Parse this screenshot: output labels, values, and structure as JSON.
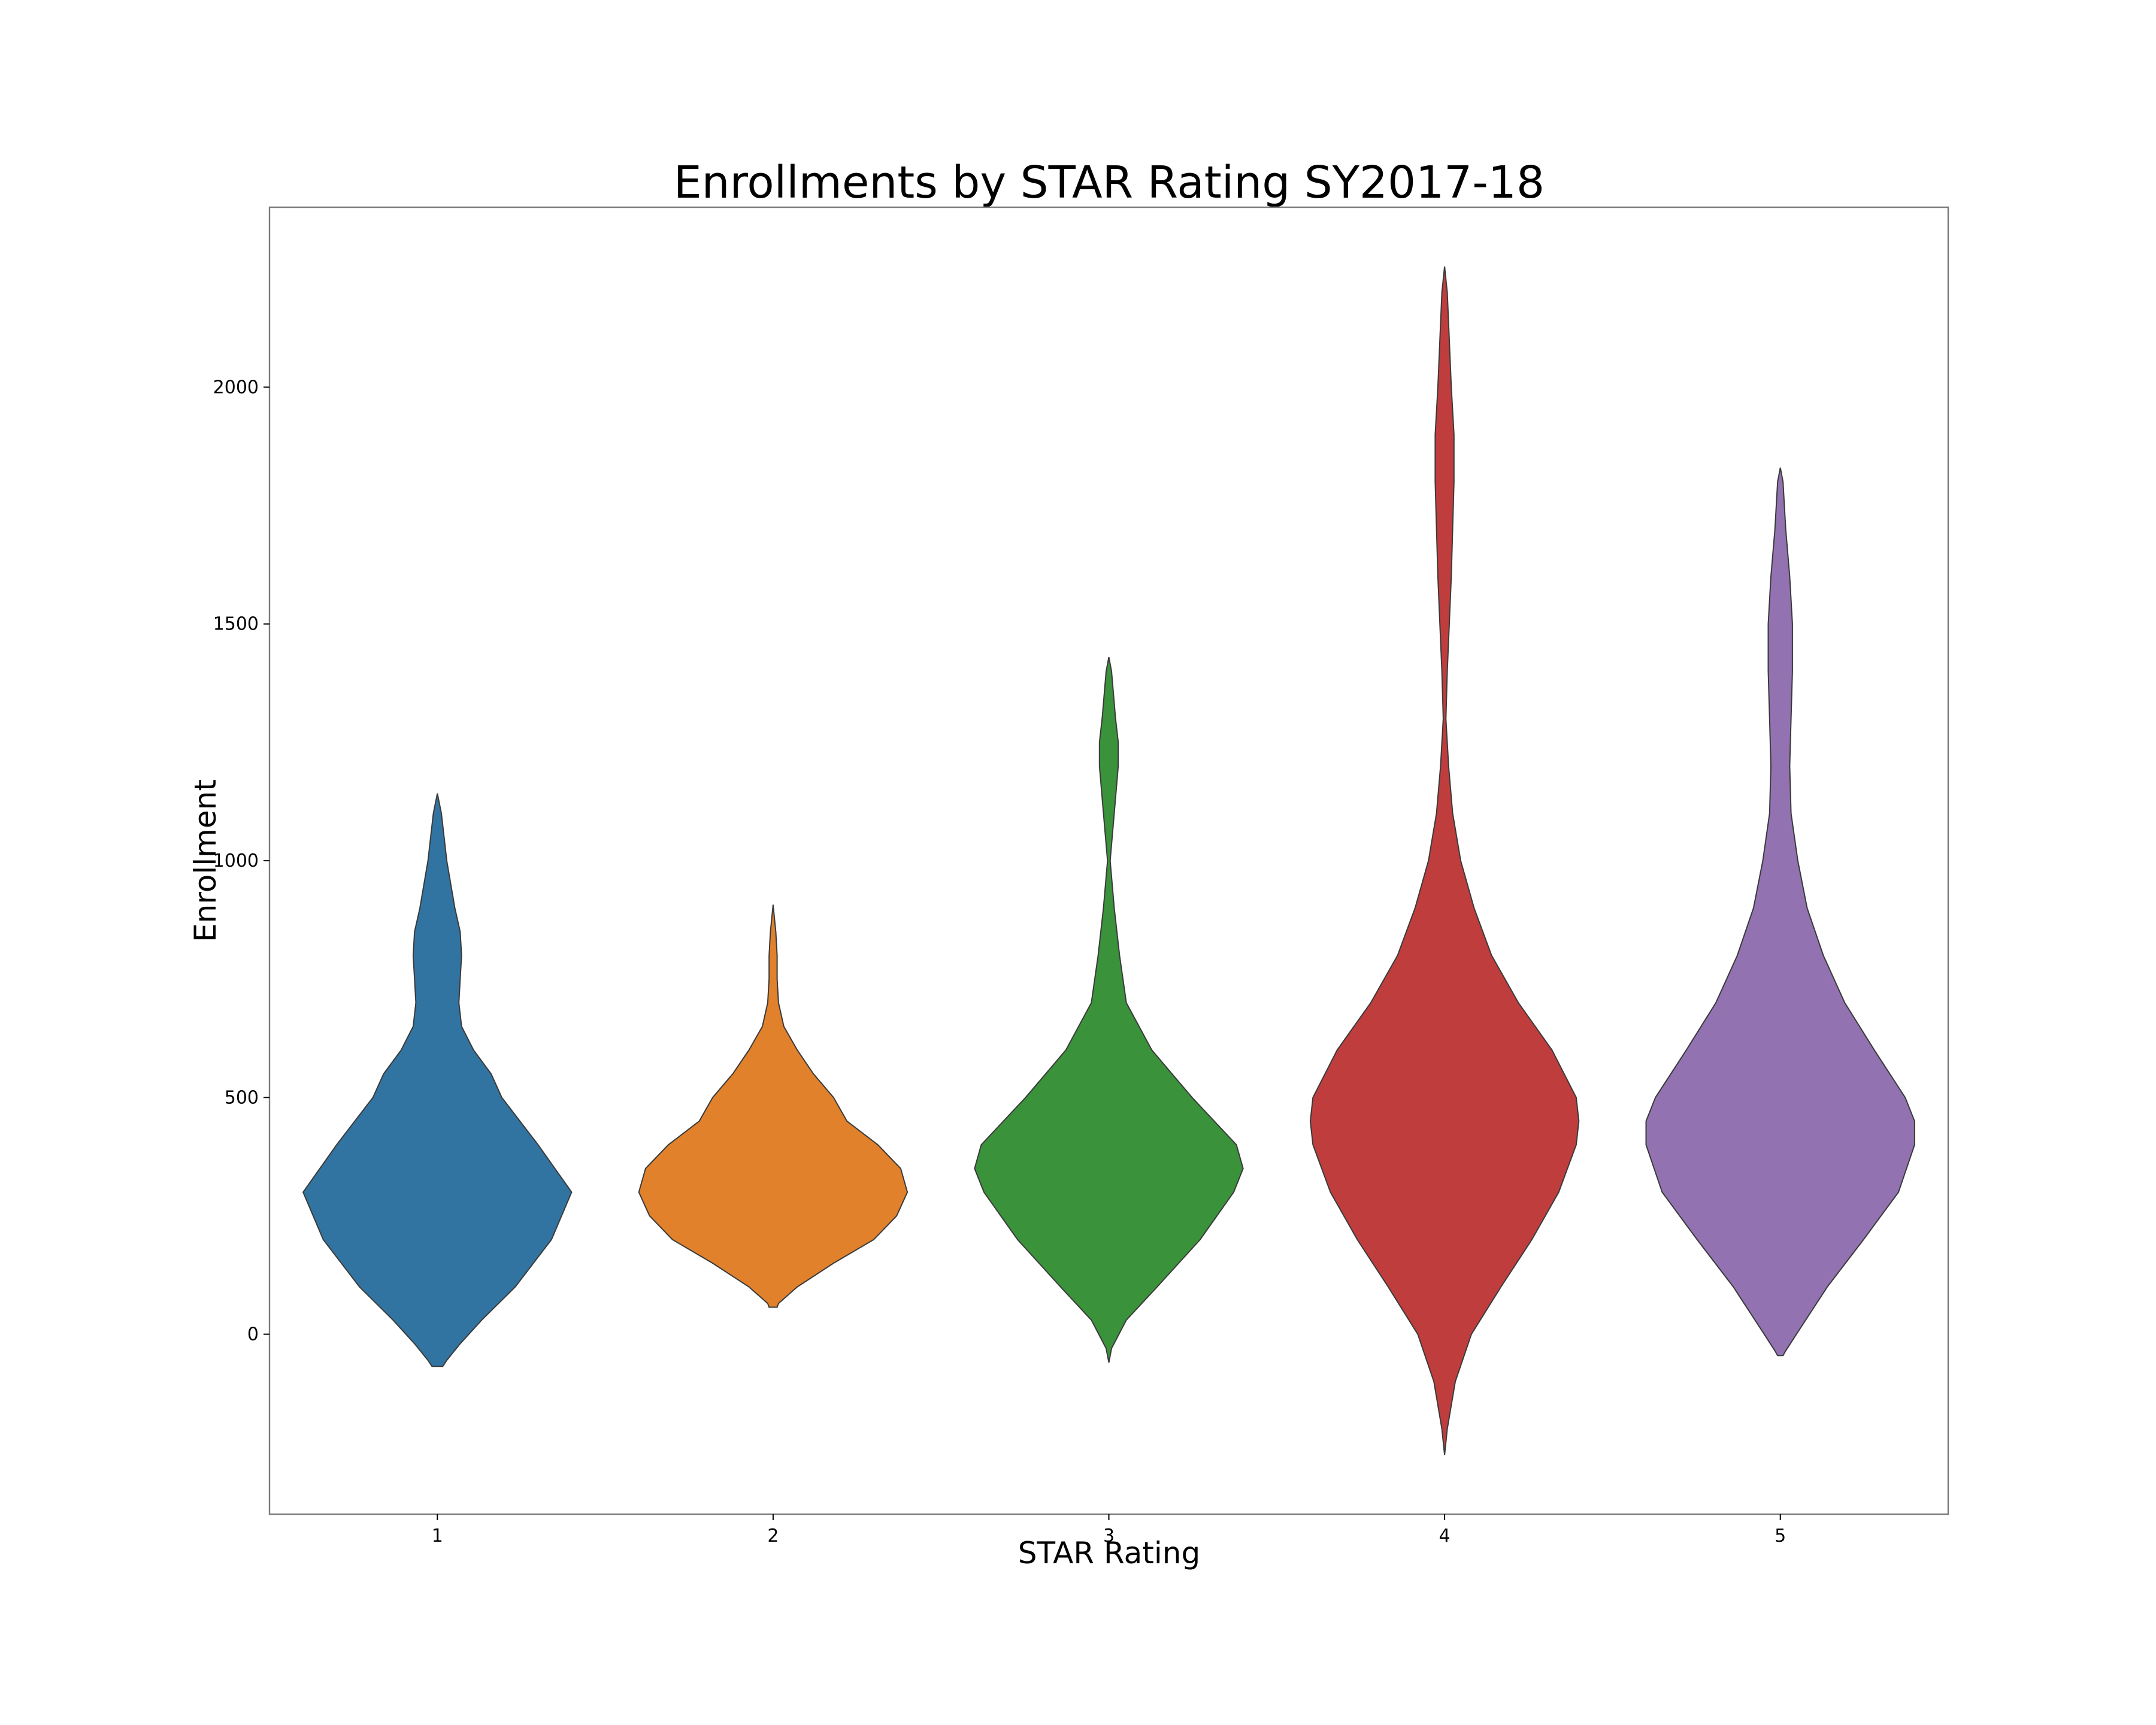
{
  "chart_data": {
    "type": "violin",
    "title": "Enrollments by STAR Rating SY2017-18",
    "xlabel": "STAR Rating",
    "ylabel": "Enrollment",
    "categories": [
      "1",
      "2",
      "3",
      "4",
      "5"
    ],
    "ylim": [
      -380,
      2380
    ],
    "yticks": [
      0,
      500,
      1000,
      1500,
      2000
    ],
    "grid": false,
    "legend": "none",
    "series": [
      {
        "category": "1",
        "color": "#3274a1",
        "density": [
          [
            -68,
            0.04
          ],
          [
            -55,
            0.07
          ],
          [
            -20,
            0.17
          ],
          [
            30,
            0.33
          ],
          [
            100,
            0.58
          ],
          [
            200,
            0.85
          ],
          [
            300,
            1.0
          ],
          [
            400,
            0.75
          ],
          [
            500,
            0.48
          ],
          [
            550,
            0.4
          ],
          [
            600,
            0.27
          ],
          [
            650,
            0.18
          ],
          [
            700,
            0.16
          ],
          [
            750,
            0.17
          ],
          [
            800,
            0.18
          ],
          [
            850,
            0.17
          ],
          [
            900,
            0.13
          ],
          [
            1000,
            0.07
          ],
          [
            1100,
            0.03
          ],
          [
            1142,
            0.0
          ]
        ]
      },
      {
        "category": "2",
        "color": "#e1812c",
        "density": [
          [
            57,
            0.03
          ],
          [
            65,
            0.04
          ],
          [
            100,
            0.18
          ],
          [
            150,
            0.45
          ],
          [
            200,
            0.75
          ],
          [
            250,
            0.92
          ],
          [
            300,
            1.0
          ],
          [
            350,
            0.95
          ],
          [
            400,
            0.78
          ],
          [
            450,
            0.55
          ],
          [
            500,
            0.45
          ],
          [
            550,
            0.3
          ],
          [
            600,
            0.18
          ],
          [
            650,
            0.08
          ],
          [
            700,
            0.04
          ],
          [
            750,
            0.03
          ],
          [
            800,
            0.03
          ],
          [
            850,
            0.02
          ],
          [
            907,
            0.0
          ]
        ]
      },
      {
        "category": "3",
        "color": "#3a923a",
        "density": [
          [
            -60,
            0.0
          ],
          [
            -30,
            0.02
          ],
          [
            30,
            0.13
          ],
          [
            100,
            0.36
          ],
          [
            200,
            0.68
          ],
          [
            300,
            0.93
          ],
          [
            350,
            1.0
          ],
          [
            400,
            0.95
          ],
          [
            500,
            0.62
          ],
          [
            600,
            0.32
          ],
          [
            700,
            0.13
          ],
          [
            800,
            0.08
          ],
          [
            900,
            0.04
          ],
          [
            1000,
            0.01
          ],
          [
            1100,
            0.04
          ],
          [
            1200,
            0.07
          ],
          [
            1250,
            0.07
          ],
          [
            1300,
            0.05
          ],
          [
            1400,
            0.02
          ],
          [
            1430,
            0.0
          ]
        ]
      },
      {
        "category": "4",
        "color": "#c03d3e",
        "density": [
          [
            -255,
            0.0
          ],
          [
            -200,
            0.02
          ],
          [
            -100,
            0.08
          ],
          [
            0,
            0.2
          ],
          [
            100,
            0.42
          ],
          [
            200,
            0.65
          ],
          [
            300,
            0.85
          ],
          [
            400,
            0.98
          ],
          [
            450,
            1.0
          ],
          [
            500,
            0.98
          ],
          [
            600,
            0.8
          ],
          [
            700,
            0.55
          ],
          [
            800,
            0.35
          ],
          [
            900,
            0.22
          ],
          [
            1000,
            0.12
          ],
          [
            1100,
            0.06
          ],
          [
            1200,
            0.03
          ],
          [
            1300,
            0.01
          ],
          [
            1400,
            0.02
          ],
          [
            1600,
            0.05
          ],
          [
            1800,
            0.07
          ],
          [
            1900,
            0.07
          ],
          [
            2000,
            0.05
          ],
          [
            2200,
            0.02
          ],
          [
            2255,
            0.0
          ]
        ]
      },
      {
        "category": "5",
        "color": "#9372b2",
        "density": [
          [
            -45,
            0.02
          ],
          [
            -35,
            0.04
          ],
          [
            0,
            0.12
          ],
          [
            100,
            0.35
          ],
          [
            200,
            0.62
          ],
          [
            300,
            0.88
          ],
          [
            400,
            1.0
          ],
          [
            450,
            1.0
          ],
          [
            500,
            0.93
          ],
          [
            600,
            0.7
          ],
          [
            700,
            0.48
          ],
          [
            800,
            0.32
          ],
          [
            900,
            0.2
          ],
          [
            1000,
            0.13
          ],
          [
            1100,
            0.08
          ],
          [
            1200,
            0.07
          ],
          [
            1300,
            0.08
          ],
          [
            1400,
            0.09
          ],
          [
            1500,
            0.09
          ],
          [
            1600,
            0.07
          ],
          [
            1700,
            0.04
          ],
          [
            1800,
            0.02
          ],
          [
            1830,
            0.0
          ]
        ]
      }
    ]
  }
}
